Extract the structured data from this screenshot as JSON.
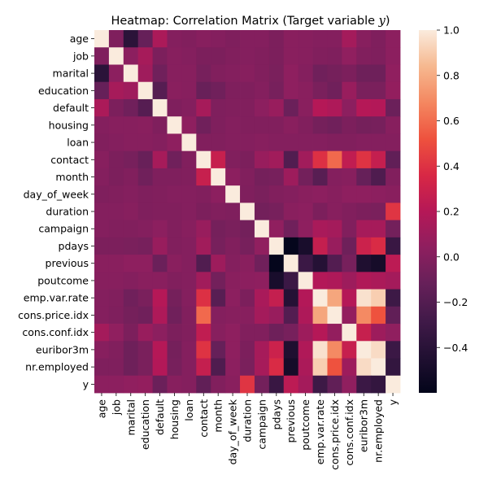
{
  "chart_data": {
    "type": "heatmap",
    "title": "Heatmap: Correlation Matrix (Target variable ",
    "title_var": "y",
    "title_suffix": ")",
    "xlabel": "",
    "ylabel": "",
    "labels": [
      "age",
      "job",
      "marital",
      "education",
      "default",
      "housing",
      "loan",
      "contact",
      "month",
      "day_of_week",
      "duration",
      "campaign",
      "pdays",
      "previous",
      "poutcome",
      "emp.var.rate",
      "cons.price.idx",
      "cons.conf.idx",
      "euribor3m",
      "nr.employed",
      "y"
    ],
    "colorbar": {
      "min": -0.6,
      "max": 1.0,
      "ticks": [
        1.0,
        0.8,
        0.6,
        0.4,
        0.2,
        0.0,
        -0.2,
        -0.4
      ],
      "tick_labels": [
        "1.0",
        "0.8",
        "0.6",
        "0.4",
        "0.2",
        "0.0",
        "−0.2",
        "−0.4"
      ]
    },
    "colormap": "rocket",
    "values": [
      [
        1.0,
        -0.02,
        -0.39,
        -0.12,
        0.16,
        0.0,
        -0.01,
        0.01,
        0.0,
        -0.02,
        0.0,
        0.0,
        -0.03,
        0.02,
        0.01,
        0.0,
        0.0,
        0.13,
        0.01,
        -0.02,
        0.03
      ],
      [
        -0.02,
        1.0,
        0.03,
        0.14,
        -0.03,
        0.01,
        0.0,
        -0.03,
        -0.03,
        -0.01,
        0.0,
        -0.01,
        -0.03,
        0.02,
        0.01,
        -0.01,
        -0.02,
        0.05,
        -0.01,
        -0.02,
        0.03
      ],
      [
        -0.39,
        0.03,
        1.0,
        0.11,
        -0.08,
        0.01,
        0.01,
        -0.05,
        -0.01,
        0.0,
        0.01,
        -0.01,
        -0.04,
        0.04,
        0.0,
        -0.08,
        -0.06,
        -0.03,
        -0.09,
        -0.09,
        0.05
      ],
      [
        -0.12,
        0.14,
        0.11,
        1.0,
        -0.19,
        0.02,
        0.01,
        -0.11,
        -0.08,
        -0.02,
        -0.02,
        0.0,
        -0.05,
        0.04,
        0.02,
        -0.04,
        -0.08,
        0.08,
        -0.04,
        -0.04,
        0.06
      ],
      [
        0.16,
        -0.03,
        -0.08,
        -0.19,
        1.0,
        -0.02,
        0.0,
        0.14,
        -0.02,
        -0.01,
        -0.01,
        0.03,
        0.08,
        -0.1,
        0.02,
        0.2,
        0.17,
        0.03,
        0.2,
        0.19,
        -0.1
      ],
      [
        0.0,
        0.01,
        0.01,
        0.02,
        -0.02,
        1.0,
        0.04,
        -0.08,
        -0.02,
        0.0,
        -0.01,
        -0.01,
        -0.01,
        0.02,
        -0.01,
        -0.06,
        -0.08,
        -0.03,
        -0.06,
        -0.05,
        0.01
      ],
      [
        -0.01,
        0.0,
        0.01,
        0.01,
        0.0,
        0.04,
        1.0,
        -0.01,
        -0.01,
        0.0,
        0.0,
        0.01,
        0.0,
        -0.0,
        -0.0,
        0.0,
        -0.01,
        -0.01,
        0.0,
        0.0,
        -0.0
      ],
      [
        0.01,
        -0.03,
        -0.05,
        -0.11,
        0.14,
        -0.08,
        -0.01,
        1.0,
        0.28,
        -0.01,
        -0.03,
        0.08,
        0.12,
        -0.21,
        0.12,
        0.39,
        0.59,
        0.25,
        0.4,
        0.27,
        -0.14
      ],
      [
        0.0,
        -0.03,
        -0.01,
        -0.08,
        -0.02,
        -0.02,
        -0.01,
        0.28,
        1.0,
        0.03,
        -0.01,
        -0.06,
        -0.05,
        0.1,
        -0.07,
        -0.18,
        -0.0,
        0.01,
        -0.12,
        -0.22,
        -0.01
      ],
      [
        -0.02,
        -0.01,
        0.0,
        -0.02,
        -0.01,
        0.0,
        0.0,
        -0.01,
        0.03,
        1.0,
        -0.02,
        -0.04,
        -0.01,
        0.0,
        0.02,
        0.03,
        0.01,
        0.04,
        0.04,
        0.03,
        0.02
      ],
      [
        0.0,
        0.0,
        0.01,
        -0.02,
        -0.01,
        -0.01,
        0.0,
        -0.03,
        -0.01,
        -0.02,
        1.0,
        -0.07,
        -0.05,
        0.02,
        0.03,
        -0.03,
        0.01,
        -0.01,
        -0.03,
        -0.04,
        0.41
      ],
      [
        0.0,
        -0.01,
        -0.01,
        0.0,
        0.03,
        -0.01,
        0.01,
        0.08,
        -0.06,
        -0.04,
        -0.07,
        1.0,
        0.05,
        -0.08,
        0.04,
        0.15,
        0.13,
        -0.01,
        0.14,
        0.14,
        -0.07
      ],
      [
        -0.03,
        -0.03,
        -0.04,
        -0.05,
        0.08,
        -0.01,
        0.0,
        0.12,
        -0.05,
        -0.01,
        -0.05,
        0.05,
        1.0,
        -0.59,
        -0.48,
        0.27,
        0.08,
        -0.09,
        0.3,
        0.37,
        -0.32
      ],
      [
        0.02,
        0.02,
        0.04,
        0.04,
        -0.1,
        0.02,
        -0.0,
        -0.21,
        0.1,
        0.0,
        0.02,
        -0.08,
        -0.59,
        1.0,
        -0.31,
        -0.42,
        -0.2,
        -0.05,
        -0.45,
        -0.5,
        0.23
      ],
      [
        0.01,
        0.01,
        0.0,
        0.02,
        0.02,
        -0.01,
        -0.0,
        0.12,
        -0.07,
        0.02,
        0.03,
        0.04,
        -0.48,
        -0.31,
        1.0,
        0.19,
        0.17,
        0.1,
        0.18,
        0.16,
        0.13
      ],
      [
        0.0,
        -0.01,
        -0.08,
        -0.04,
        0.2,
        -0.06,
        0.0,
        0.39,
        -0.18,
        0.03,
        -0.03,
        0.15,
        0.27,
        -0.42,
        0.19,
        1.0,
        0.78,
        0.2,
        0.97,
        0.91,
        -0.3
      ],
      [
        0.0,
        -0.02,
        -0.06,
        -0.08,
        0.17,
        -0.08,
        -0.01,
        0.59,
        -0.0,
        0.01,
        0.01,
        0.13,
        0.08,
        -0.2,
        0.17,
        0.78,
        1.0,
        0.06,
        0.69,
        0.52,
        -0.14
      ],
      [
        0.13,
        0.05,
        -0.03,
        0.08,
        0.03,
        -0.03,
        -0.01,
        0.25,
        0.01,
        0.04,
        -0.01,
        -0.01,
        -0.09,
        -0.05,
        0.1,
        0.2,
        0.06,
        1.0,
        0.28,
        0.1,
        0.05
      ],
      [
        0.01,
        -0.01,
        -0.09,
        -0.04,
        0.2,
        -0.06,
        0.0,
        0.4,
        -0.12,
        0.04,
        -0.03,
        0.14,
        0.3,
        -0.45,
        0.18,
        0.97,
        0.69,
        0.28,
        1.0,
        0.95,
        -0.31
      ],
      [
        -0.02,
        -0.02,
        -0.09,
        -0.04,
        0.19,
        -0.05,
        0.0,
        0.27,
        -0.22,
        0.03,
        -0.04,
        0.14,
        0.37,
        -0.5,
        0.16,
        0.91,
        0.52,
        0.1,
        0.95,
        1.0,
        -0.35
      ],
      [
        0.03,
        0.03,
        0.05,
        0.06,
        -0.1,
        0.01,
        -0.0,
        -0.14,
        -0.01,
        0.02,
        0.41,
        -0.07,
        -0.32,
        0.23,
        0.13,
        -0.3,
        -0.14,
        0.05,
        -0.31,
        -0.35,
        1.0
      ]
    ]
  }
}
